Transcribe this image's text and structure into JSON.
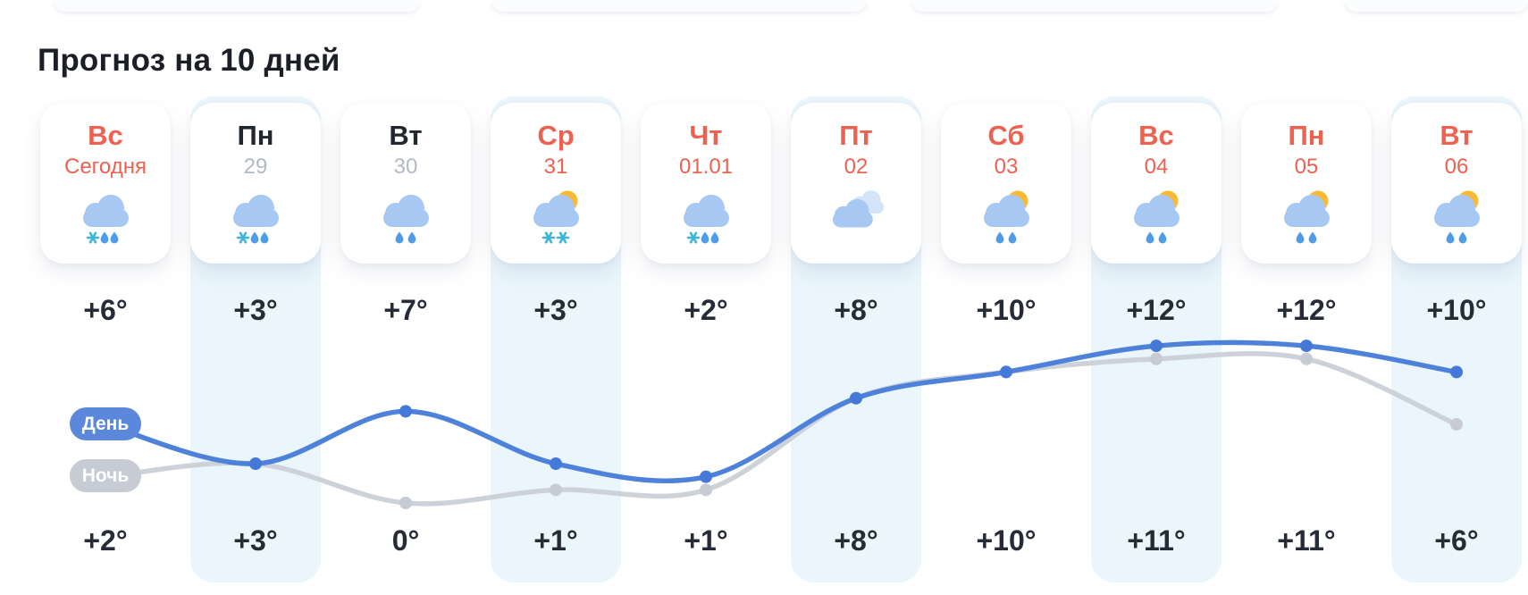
{
  "title": "Прогноз на 10 дней",
  "legend": {
    "day": "День",
    "night": "Ночь"
  },
  "days": [
    {
      "name": "Вс",
      "date": "Сегодня",
      "highlight": true,
      "icon": "cloud-snow-rain",
      "day_temp": "+6°",
      "night_temp": "+2°"
    },
    {
      "name": "Пн",
      "date": "29",
      "highlight": false,
      "icon": "cloud-snow-rain",
      "day_temp": "+3°",
      "night_temp": "+3°"
    },
    {
      "name": "Вт",
      "date": "30",
      "highlight": false,
      "icon": "cloud-rain",
      "day_temp": "+7°",
      "night_temp": "0°"
    },
    {
      "name": "Ср",
      "date": "31",
      "highlight": true,
      "icon": "sun-cloud-snow",
      "day_temp": "+3°",
      "night_temp": "+1°"
    },
    {
      "name": "Чт",
      "date": "01.01",
      "highlight": true,
      "icon": "cloud-snow-rain",
      "day_temp": "+2°",
      "night_temp": "+1°"
    },
    {
      "name": "Пт",
      "date": "02",
      "highlight": true,
      "icon": "cloudy",
      "day_temp": "+8°",
      "night_temp": "+8°"
    },
    {
      "name": "Сб",
      "date": "03",
      "highlight": true,
      "icon": "sun-cloud-rain",
      "day_temp": "+10°",
      "night_temp": "+10°"
    },
    {
      "name": "Вс",
      "date": "04",
      "highlight": true,
      "icon": "sun-cloud-rain",
      "day_temp": "+12°",
      "night_temp": "+11°"
    },
    {
      "name": "Пн",
      "date": "05",
      "highlight": true,
      "icon": "sun-cloud-rain",
      "day_temp": "+12°",
      "night_temp": "+11°"
    },
    {
      "name": "Вт",
      "date": "06",
      "highlight": true,
      "icon": "sun-cloud-rain",
      "day_temp": "+10°",
      "night_temp": "+6°"
    }
  ],
  "chart_data": {
    "type": "line",
    "categories": [
      "Вс",
      "Пн",
      "Вт",
      "Ср",
      "Чт",
      "Пт",
      "Сб",
      "Вс",
      "Пн",
      "Вт"
    ],
    "series": [
      {
        "name": "День",
        "values": [
          6,
          3,
          7,
          3,
          2,
          8,
          10,
          12,
          12,
          10
        ],
        "color": "#4e82da"
      },
      {
        "name": "Ночь",
        "values": [
          2,
          3,
          0,
          1,
          1,
          8,
          10,
          11,
          11,
          6
        ],
        "color": "#cdd2d9"
      }
    ],
    "legend_position": "left",
    "grid": false
  },
  "colors": {
    "accent_red": "#ed6151",
    "text_dark": "#22262e",
    "text_temp": "#262b37",
    "date_gray": "#b2b9c6",
    "band_blue": "#eaf5fc",
    "day_line": "#4e82da",
    "day_dot": "#4479d8",
    "night_line": "#cdd2d9",
    "night_dot": "#c7ccd4",
    "day_pill_bg": "#5c88dc",
    "night_pill_bg": "#c6cbd4",
    "cloud": "#a7c8f2",
    "cloud_back": "#d4e4f9",
    "sun": "#f8ba32",
    "raindrop": "#4f9de8",
    "snowflake": "#3fb4da"
  }
}
